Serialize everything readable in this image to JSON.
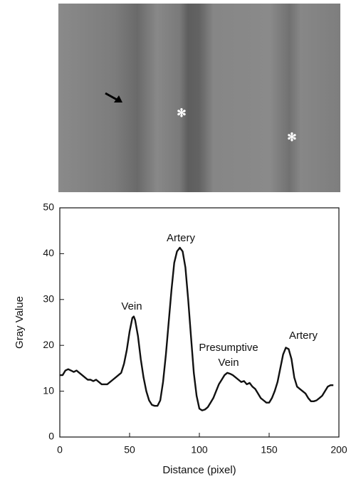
{
  "chart_data": {
    "type": "line",
    "xlabel": "Distance (pixel)",
    "ylabel": "Gray Value",
    "x": [
      0,
      2,
      4,
      6,
      8,
      10,
      12,
      14,
      16,
      18,
      20,
      22,
      24,
      26,
      28,
      30,
      32,
      34,
      36,
      38,
      40,
      42,
      44,
      46,
      48,
      50,
      52,
      53,
      54,
      56,
      58,
      60,
      62,
      64,
      66,
      68,
      70,
      72,
      74,
      76,
      78,
      80,
      82,
      84,
      86,
      88,
      90,
      92,
      94,
      96,
      98,
      100,
      102,
      104,
      106,
      108,
      110,
      112,
      114,
      116,
      118,
      120,
      122,
      124,
      126,
      128,
      130,
      132,
      134,
      136,
      138,
      140,
      142,
      144,
      146,
      148,
      150,
      152,
      154,
      156,
      158,
      160,
      162,
      164,
      166,
      168,
      170,
      172,
      174,
      176,
      178,
      180,
      182,
      184,
      186,
      188,
      190,
      192,
      194,
      196
    ],
    "series": [
      {
        "color": "#111111",
        "values": [
          13.5,
          13.5,
          14.5,
          14.8,
          14.5,
          14.2,
          14.5,
          14,
          13.5,
          13,
          12.5,
          12.5,
          12.2,
          12.5,
          12,
          11.5,
          11.5,
          11.5,
          12,
          12.5,
          13,
          13.5,
          14,
          16,
          19,
          23,
          26,
          26.3,
          25.5,
          22,
          17,
          13,
          10,
          8,
          7,
          6.8,
          6.8,
          8,
          12,
          18,
          25,
          32,
          38,
          40.5,
          41.3,
          40.5,
          37,
          30,
          22,
          14,
          9,
          6.2,
          5.8,
          6,
          6.5,
          7.5,
          8.5,
          10,
          11.5,
          12.5,
          13.5,
          14,
          13.8,
          13.5,
          13,
          12.5,
          12,
          12.2,
          11.5,
          11.8,
          11,
          10.5,
          9.5,
          8.5,
          8,
          7.5,
          7.5,
          8.5,
          10,
          12,
          15,
          18,
          19.5,
          19.2,
          17,
          13,
          11,
          10.5,
          10,
          9.5,
          8.5,
          7.8,
          7.8,
          8,
          8.5,
          9,
          10,
          11,
          11.3,
          11.3
        ]
      }
    ],
    "xlim": [
      0,
      200
    ],
    "xticks": [
      0,
      50,
      100,
      150,
      200
    ],
    "ylim": [
      0,
      50
    ],
    "yticks": [
      0,
      10,
      20,
      30,
      40,
      50
    ],
    "annotations": [
      "Vein",
      "Artery",
      "Presumptive",
      "Vein",
      "Artery"
    ]
  }
}
